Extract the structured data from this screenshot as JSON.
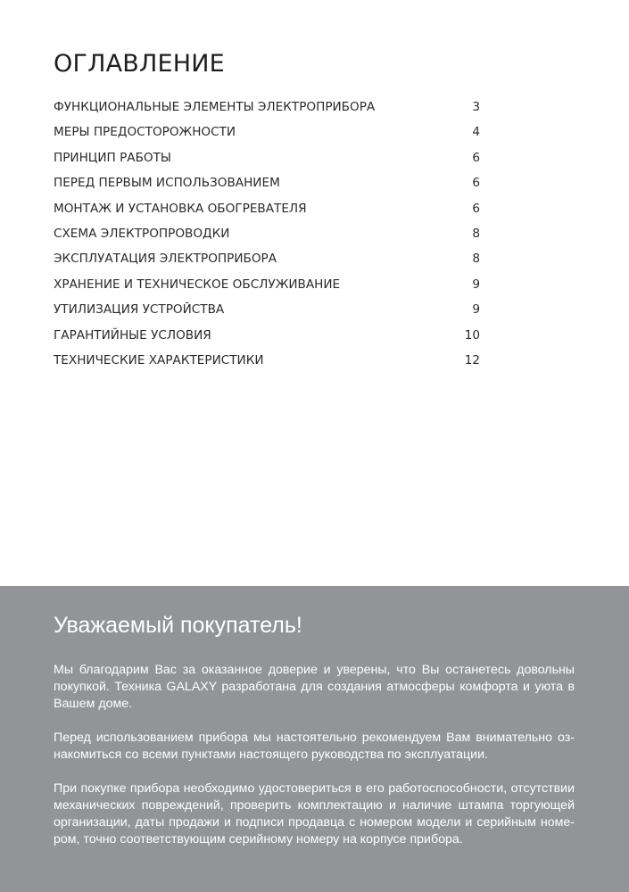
{
  "toc": {
    "title": "ОГЛАВЛЕНИЕ",
    "items": [
      {
        "label": "ФУНКЦИОНАЛЬНЫЕ ЭЛЕМЕНТЫ ЭЛЕКТРОПРИБОРА",
        "page": "3"
      },
      {
        "label": "МЕРЫ ПРЕДОСТОРОЖНОСТИ",
        "page": "4"
      },
      {
        "label": "ПРИНЦИП РАБОТЫ",
        "page": "6"
      },
      {
        "label": "ПЕРЕД ПЕРВЫМ ИСПОЛЬЗОВАНИЕМ",
        "page": "6"
      },
      {
        "label": "МОНТАЖ И УСТАНОВКА ОБОГРЕВАТЕЛЯ",
        "page": "6"
      },
      {
        "label": "СХЕМА ЭЛЕКТРОПРОВОДКИ",
        "page": "8"
      },
      {
        "label": "ЭКСПЛУАТАЦИЯ ЭЛЕКТРОПРИБОРА",
        "page": "8"
      },
      {
        "label": "ХРАНЕНИЕ И ТЕХНИЧЕСКОЕ ОБСЛУЖИВАНИЕ",
        "page": "9"
      },
      {
        "label": "УТИЛИЗАЦИЯ УСТРОЙСТВА",
        "page": "9"
      },
      {
        "label": "ГАРАНТИЙНЫЕ УСЛОВИЯ",
        "page": "10"
      },
      {
        "label": "ТЕХНИЧЕСКИЕ ХАРАКТЕРИСТИКИ",
        "page": "12"
      }
    ]
  },
  "greeting": {
    "heading": "Уважаемый покупатель!",
    "background": "#939498",
    "paragraphs": [
      [
        "Мы благодарим Вас за оказанное доверие и уверены, что Вы останетесь довольны",
        "покупкой. Техника GALAXY разработана для создания атмосферы комфорта и уюта в",
        "Вашем доме."
      ],
      [
        "Перед использованием прибора мы настоятельно рекомендуем Вам внимательно оз-",
        "накомиться со всеми пунктами настоящего руководства по эксплуатации."
      ],
      [
        "При покупке прибора необходимо удостовериться в его работоспособности, отсутствии",
        "механических повреждений, проверить комплектацию и наличие штампа торгующей",
        "организации, даты продажи и подписи продавца с номером модели и серийным номе-",
        "ром, точно соответствующим серийному номеру на корпусе прибора."
      ]
    ]
  }
}
